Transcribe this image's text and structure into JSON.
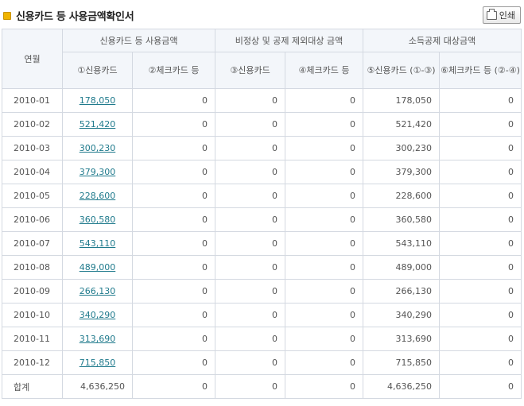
{
  "header": {
    "title": "신용카드 등 사용금액확인서",
    "print_label": "인쇄"
  },
  "table": {
    "month_header": "연월",
    "groups": [
      "신용카드 등 사용금액",
      "비정상 및 공제 제외대상 금액",
      "소득공제 대상금액"
    ],
    "subheaders": [
      "①신용카드",
      "②체크카드 등",
      "③신용카드",
      "④체크카드 등",
      "⑤신용카드 (①-③)",
      "⑥체크카드 등 (②-④)"
    ],
    "rows": [
      {
        "month": "2010-01",
        "c1": "178,050",
        "c2": "0",
        "c3": "0",
        "c4": "0",
        "c5": "178,050",
        "c6": "0"
      },
      {
        "month": "2010-02",
        "c1": "521,420",
        "c2": "0",
        "c3": "0",
        "c4": "0",
        "c5": "521,420",
        "c6": "0"
      },
      {
        "month": "2010-03",
        "c1": "300,230",
        "c2": "0",
        "c3": "0",
        "c4": "0",
        "c5": "300,230",
        "c6": "0"
      },
      {
        "month": "2010-04",
        "c1": "379,300",
        "c2": "0",
        "c3": "0",
        "c4": "0",
        "c5": "379,300",
        "c6": "0"
      },
      {
        "month": "2010-05",
        "c1": "228,600",
        "c2": "0",
        "c3": "0",
        "c4": "0",
        "c5": "228,600",
        "c6": "0"
      },
      {
        "month": "2010-06",
        "c1": "360,580",
        "c2": "0",
        "c3": "0",
        "c4": "0",
        "c5": "360,580",
        "c6": "0"
      },
      {
        "month": "2010-07",
        "c1": "543,110",
        "c2": "0",
        "c3": "0",
        "c4": "0",
        "c5": "543,110",
        "c6": "0"
      },
      {
        "month": "2010-08",
        "c1": "489,000",
        "c2": "0",
        "c3": "0",
        "c4": "0",
        "c5": "489,000",
        "c6": "0"
      },
      {
        "month": "2010-09",
        "c1": "266,130",
        "c2": "0",
        "c3": "0",
        "c4": "0",
        "c5": "266,130",
        "c6": "0"
      },
      {
        "month": "2010-10",
        "c1": "340,290",
        "c2": "0",
        "c3": "0",
        "c4": "0",
        "c5": "340,290",
        "c6": "0"
      },
      {
        "month": "2010-11",
        "c1": "313,690",
        "c2": "0",
        "c3": "0",
        "c4": "0",
        "c5": "313,690",
        "c6": "0"
      },
      {
        "month": "2010-12",
        "c1": "715,850",
        "c2": "0",
        "c3": "0",
        "c4": "0",
        "c5": "715,850",
        "c6": "0"
      }
    ],
    "total": {
      "label": "합계",
      "c1": "4,636,250",
      "c2": "0",
      "c3": "0",
      "c4": "0",
      "c5": "4,636,250",
      "c6": "0"
    }
  }
}
